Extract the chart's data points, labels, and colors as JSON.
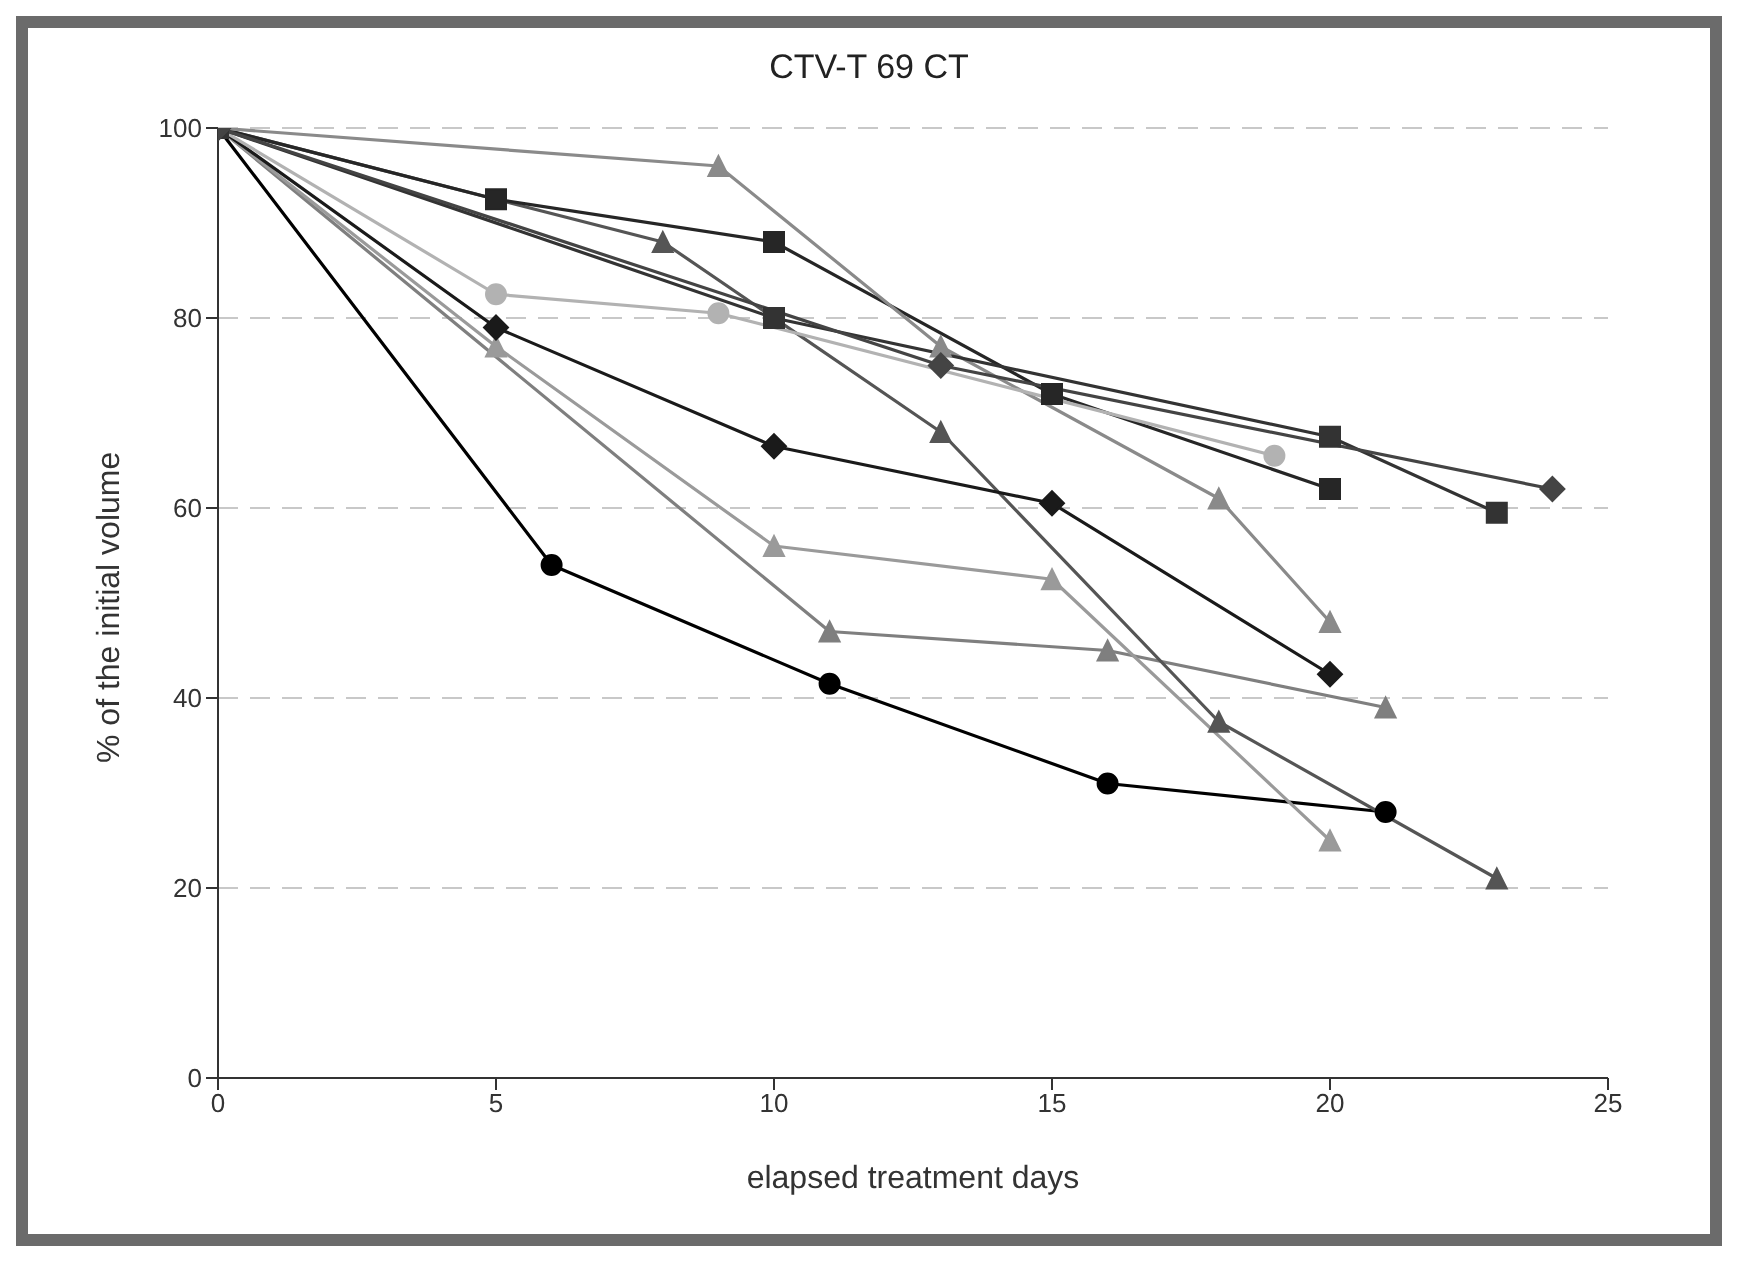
{
  "chart_data": {
    "type": "line",
    "title": "CTV-T 69 CT",
    "xlabel": "elapsed treatment days",
    "ylabel": "% of the initial volume",
    "xlim": [
      0,
      25
    ],
    "xticks": [
      0,
      5,
      10,
      15,
      20,
      25
    ],
    "ylim": [
      0,
      100
    ],
    "yticks": [
      0,
      20,
      40,
      60,
      80,
      100
    ],
    "grid": "y",
    "series": [
      {
        "color": "#000000",
        "marker": "circle",
        "x": [
          0,
          6,
          11,
          16,
          21
        ],
        "values": [
          100,
          54,
          41.5,
          31,
          28
        ]
      },
      {
        "color": "#7f7f7f",
        "marker": "triangle",
        "x": [
          0,
          11,
          16,
          21
        ],
        "values": [
          100,
          47,
          45,
          39
        ]
      },
      {
        "color": "#9a9a9a",
        "marker": "triangle",
        "x": [
          0,
          5,
          10,
          15,
          20
        ],
        "values": [
          100,
          77,
          56,
          52.5,
          25
        ]
      },
      {
        "color": "#555555",
        "marker": "triangle",
        "x": [
          0,
          8,
          13,
          18,
          23
        ],
        "values": [
          100,
          88,
          68,
          37.5,
          21
        ]
      },
      {
        "color": "#1a1a1a",
        "marker": "diamond",
        "x": [
          0,
          5,
          10,
          15,
          20
        ],
        "values": [
          100,
          79,
          66.5,
          60.5,
          42.5
        ]
      },
      {
        "color": "#262626",
        "marker": "square",
        "x": [
          0,
          5,
          10,
          15,
          20
        ],
        "values": [
          100,
          92.5,
          88,
          72,
          62
        ]
      },
      {
        "color": "#8a8a8a",
        "marker": "triangle",
        "x": [
          0,
          9,
          13,
          18,
          20
        ],
        "values": [
          100,
          96,
          77,
          61,
          48
        ]
      },
      {
        "color": "#b2b2b2",
        "marker": "circle",
        "x": [
          0,
          5,
          9,
          19
        ],
        "values": [
          100,
          82.5,
          80.5,
          65.5
        ]
      },
      {
        "color": "#333333",
        "marker": "square",
        "x": [
          0,
          10,
          20,
          23
        ],
        "values": [
          100,
          80,
          67.5,
          59.5
        ]
      },
      {
        "color": "#444444",
        "marker": "diamond",
        "x": [
          0,
          13,
          24
        ],
        "values": [
          100,
          75,
          62
        ]
      }
    ]
  }
}
